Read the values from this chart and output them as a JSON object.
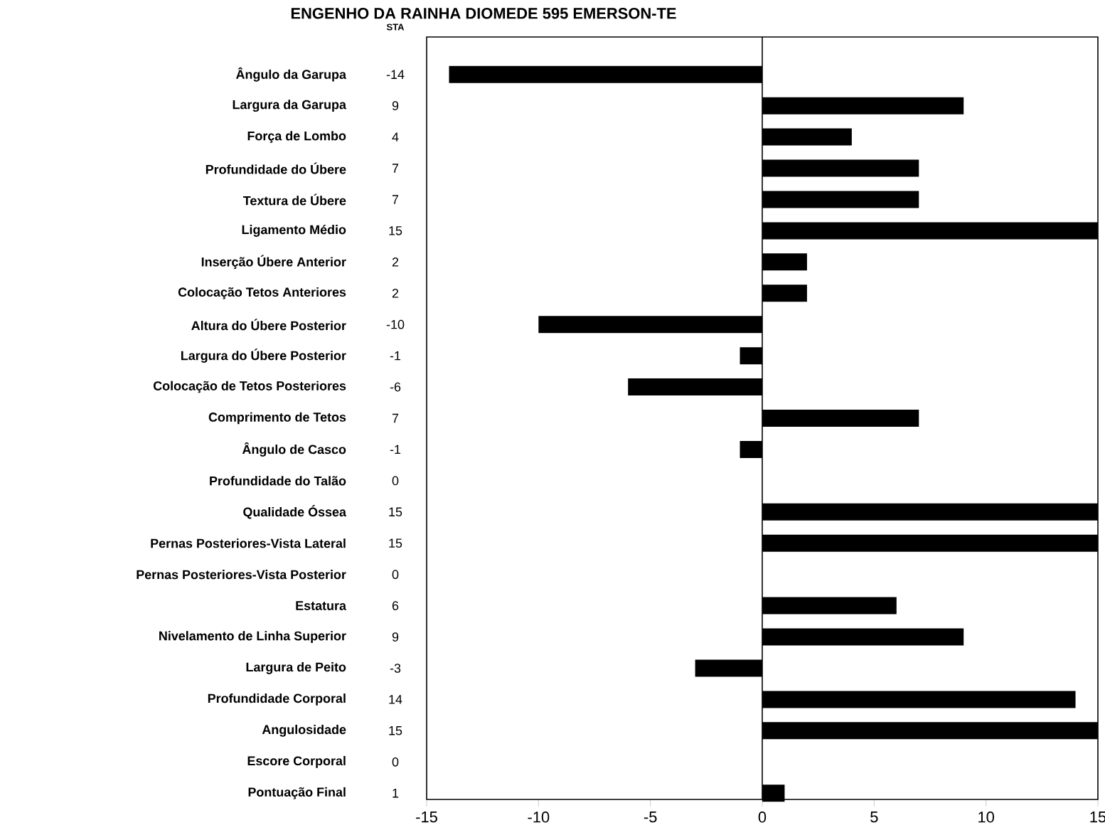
{
  "chart_data": {
    "type": "bar",
    "orientation": "horizontal",
    "title": "ENGENHO DA RAINHA DIOMEDE 595 EMERSON-TE",
    "annotations": [
      "STA"
    ],
    "categories": [
      "Ângulo da Garupa",
      "Largura da Garupa",
      "Força de Lombo",
      "Profundidade do Úbere",
      "Textura de Úbere",
      "Ligamento Médio",
      "Inserção Úbere Anterior",
      "Colocação Tetos Anteriores",
      "Altura do Úbere Posterior",
      "Largura do Úbere Posterior",
      "Colocação de Tetos Posteriores",
      "Comprimento de Tetos",
      "Ângulo de Casco",
      "Profundidade do Talão",
      "Qualidade Óssea",
      "Pernas Posteriores-Vista Lateral",
      "Pernas Posteriores-Vista Posterior",
      "Estatura",
      "Nivelamento de Linha Superior",
      "Largura de Peito",
      "Profundidade Corporal",
      "Angulosidade",
      "Escore Corporal",
      "Pontuação Final"
    ],
    "values": [
      -14,
      9,
      4,
      7,
      7,
      15,
      2,
      2,
      -10,
      -1,
      -6,
      7,
      -1,
      0,
      15,
      15,
      0,
      6,
      9,
      -3,
      14,
      15,
      0,
      1
    ],
    "color": "#000000",
    "data_labels": true,
    "xlim": [
      -15,
      15
    ],
    "xticks": [
      -15,
      -10,
      -5,
      0,
      5,
      10,
      15
    ],
    "ref_lines": [
      {
        "axis": "x",
        "value": 0
      }
    ]
  }
}
